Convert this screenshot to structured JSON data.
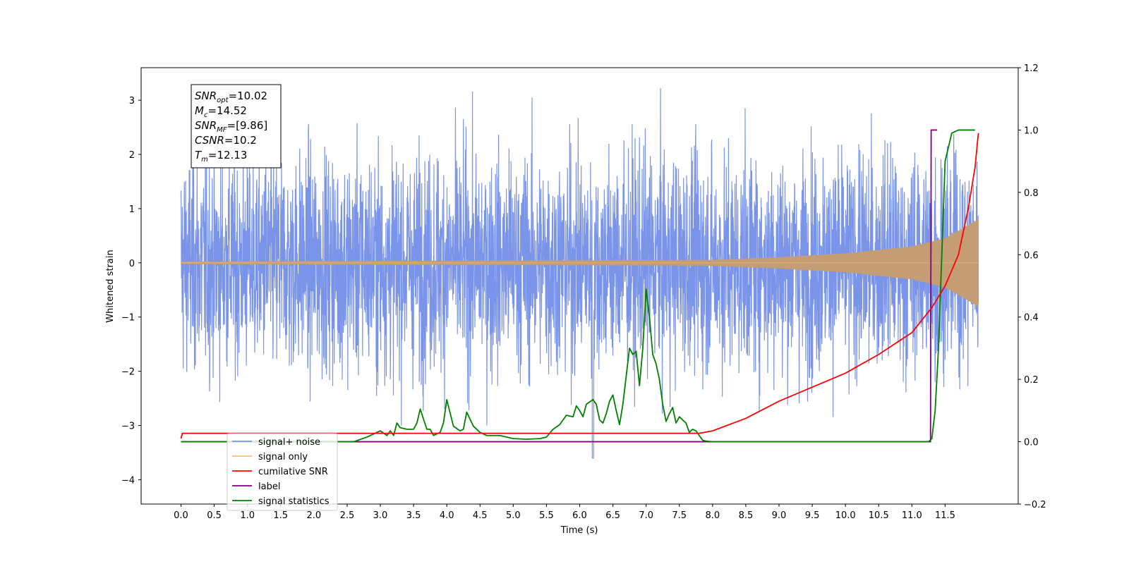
{
  "chart_data": {
    "type": "line",
    "xlabel": "Time (s)",
    "ylabel": "Whitened strain",
    "x_ticks": [
      "0.0",
      "0.5",
      "1.0",
      "1.5",
      "2.0",
      "2.5",
      "3.0",
      "3.5",
      "4.0",
      "4.5",
      "5.0",
      "5.5",
      "6.0",
      "6.5",
      "7.0",
      "7.5",
      "8.0",
      "8.5",
      "9.0",
      "9.5",
      "10.0",
      "10.5",
      "11.0",
      "11.5"
    ],
    "y_ticks_left": [
      "3",
      "2",
      "1",
      "0",
      "−1",
      "−2",
      "−3",
      "−4"
    ],
    "y_ticks_right": [
      "1.2",
      "1.0",
      "0.8",
      "0.6",
      "0.4",
      "0.2",
      "0.0",
      "−0.2"
    ],
    "xlim": [
      -0.6,
      12.6
    ],
    "ylim_left": [
      -4.45,
      3.6
    ],
    "ylim_right": [
      -0.2,
      1.2
    ],
    "grid": false,
    "legend_position": "lower-left",
    "annotation": {
      "snr_opt_base": "SNR",
      "snr_opt_sub": "opt",
      "snr_opt_value": "=10.02",
      "mc_base": "M",
      "mc_sub": "c",
      "mc_value": "=14.52",
      "snr_mf_base": "SNR",
      "snr_mf_sub": "MF",
      "snr_mf_value": "=[9.86]",
      "csnr_base": "CSNR",
      "csnr_value": "=10.2",
      "tm_base": "T",
      "tm_sub": "m",
      "tm_value": "=12.13"
    },
    "series": [
      {
        "name": "signal+ noise",
        "axis": "left",
        "color": "#7994e8",
        "description_level": "noise amplitude about ±2",
        "t_end": 12.0
      },
      {
        "name": "signal only",
        "axis": "left",
        "color": "#fdbf6f",
        "fill_color": "#c59d74",
        "chirp_amplitude": [
          [
            0.0,
            0.02
          ],
          [
            8.0,
            0.05
          ],
          [
            9.0,
            0.1
          ],
          [
            10.0,
            0.17
          ],
          [
            11.0,
            0.3
          ],
          [
            11.5,
            0.45
          ],
          [
            12.0,
            0.8
          ]
        ]
      },
      {
        "name": "cumilative SNR",
        "axis": "right",
        "color": "#ff0000",
        "x": [
          0.0,
          0.02,
          7.8,
          8.0,
          8.5,
          9.0,
          9.5,
          10.0,
          10.5,
          11.0,
          11.3,
          11.5,
          11.7,
          11.85,
          11.95,
          12.0
        ],
        "y": [
          0.01,
          0.027,
          0.027,
          0.035,
          0.075,
          0.13,
          0.175,
          0.22,
          0.28,
          0.35,
          0.43,
          0.5,
          0.6,
          0.75,
          0.88,
          0.99
        ]
      },
      {
        "name": "label",
        "axis": "right",
        "color": "#800080",
        "x": [
          0.0,
          11.28,
          11.29,
          11.38
        ],
        "y": [
          0.0,
          0.0,
          1.0,
          1.0
        ]
      },
      {
        "name": "signal statistics",
        "axis": "right",
        "color": "#008000",
        "x": [
          0.0,
          2.6,
          2.8,
          3.0,
          3.1,
          3.15,
          3.2,
          3.25,
          3.3,
          3.4,
          3.5,
          3.55,
          3.6,
          3.7,
          3.75,
          3.8,
          3.9,
          3.95,
          4.0,
          4.1,
          4.2,
          4.25,
          4.3,
          4.4,
          4.5,
          4.6,
          4.8,
          5.0,
          5.2,
          5.4,
          5.5,
          5.6,
          5.7,
          5.8,
          5.9,
          5.95,
          6.0,
          6.05,
          6.1,
          6.2,
          6.25,
          6.3,
          6.35,
          6.4,
          6.45,
          6.5,
          6.55,
          6.6,
          6.65,
          6.7,
          6.75,
          6.8,
          6.85,
          6.9,
          6.95,
          7.0,
          7.05,
          7.1,
          7.15,
          7.2,
          7.25,
          7.3,
          7.35,
          7.4,
          7.45,
          7.5,
          7.55,
          7.6,
          7.65,
          7.7,
          7.75,
          7.8,
          7.85,
          7.9,
          8.0,
          8.1,
          8.3,
          11.0,
          11.25,
          11.3,
          11.35,
          11.4,
          11.45,
          11.5,
          11.6,
          11.7,
          11.8,
          11.95
        ],
        "y": [
          0.0,
          0.0,
          0.015,
          0.035,
          0.02,
          0.035,
          0.02,
          0.06,
          0.045,
          0.04,
          0.04,
          0.06,
          0.105,
          0.04,
          0.04,
          0.02,
          0.03,
          0.06,
          0.135,
          0.05,
          0.035,
          0.04,
          0.095,
          0.05,
          0.03,
          0.02,
          0.02,
          0.01,
          0.008,
          0.01,
          0.015,
          0.04,
          0.055,
          0.085,
          0.08,
          0.115,
          0.1,
          0.08,
          0.12,
          0.135,
          0.12,
          0.07,
          0.06,
          0.09,
          0.13,
          0.15,
          0.1,
          0.055,
          0.12,
          0.21,
          0.3,
          0.28,
          0.29,
          0.18,
          0.3,
          0.49,
          0.4,
          0.28,
          0.25,
          0.2,
          0.12,
          0.065,
          0.09,
          0.11,
          0.06,
          0.08,
          0.07,
          0.06,
          0.03,
          0.04,
          0.035,
          0.02,
          0.005,
          0.002,
          0.0,
          0.0,
          0.0,
          0.0,
          0.0,
          0.01,
          0.1,
          0.3,
          0.6,
          0.9,
          0.99,
          1.0,
          1.0,
          1.0
        ]
      }
    ]
  }
}
